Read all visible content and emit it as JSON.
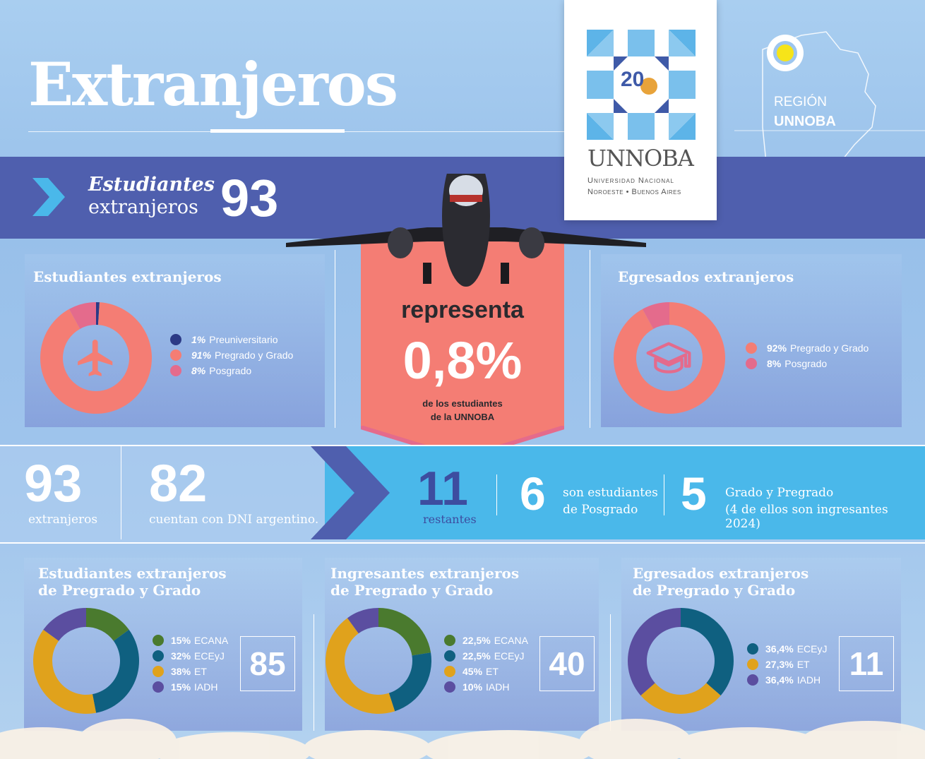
{
  "header": {
    "title": "Extranjeros"
  },
  "band": {
    "title": "Estudiantes",
    "subtitle": "extranjeros",
    "value": "93"
  },
  "logo": {
    "anniversary": "20",
    "name": "UNNOBA",
    "line1": "Universidad Nacional",
    "line2": "Noroeste • Buenos Aires"
  },
  "region": {
    "label": "REGIÓN",
    "name": "UNNOBA"
  },
  "center": {
    "word": "representa",
    "percent": "0,8%",
    "caption1": "de los estudiantes",
    "caption2": "de la UNNOBA"
  },
  "colors": {
    "band": "#4f5fae",
    "salmon": "#f47d74",
    "pink": "#e46b8c",
    "navy": "#2c3a86",
    "green": "#4a7a2e",
    "teal": "#0f6080",
    "orange": "#e0a21c",
    "purple": "#5b4ea0",
    "light_blue": "#4ab8ea"
  },
  "icons": {
    "students": "plane-icon",
    "graduates": "graduation-cap-icon"
  },
  "summary": {
    "total": {
      "value": "93",
      "label": "extranjeros"
    },
    "dni": {
      "value": "82",
      "label": "cuentan con DNI argentino."
    },
    "remaining": {
      "value": "11",
      "label": "restantes"
    },
    "posgrado": {
      "value": "6",
      "label1": "son estudiantes",
      "label2": "de Posgrado"
    },
    "grado": {
      "value": "5",
      "label1": "Grado y Pregrado",
      "label2": "(4 de ellos son ingresantes 2024)"
    }
  },
  "chart_data": [
    {
      "type": "pie",
      "title": "Estudiantes extranjeros",
      "series": [
        {
          "label": "Preuniversitario",
          "pct": "1%",
          "value": 1,
          "color": "#2c3a86"
        },
        {
          "label": "Pregrado y Grado",
          "pct": "91%",
          "value": 91,
          "color": "#f47d74"
        },
        {
          "label": "Posgrado",
          "pct": "8%",
          "value": 8,
          "color": "#e46b8c"
        }
      ]
    },
    {
      "type": "pie",
      "title": "Egresados extranjeros",
      "series": [
        {
          "label": "Pregrado y Grado",
          "pct": "92%",
          "value": 92,
          "color": "#f47d74"
        },
        {
          "label": "Posgrado",
          "pct": "8%",
          "value": 8,
          "color": "#e46b8c"
        }
      ]
    },
    {
      "type": "pie",
      "title_line1": "Estudiantes extranjeros",
      "title_line2": "de Pregrado y Grado",
      "total": "85",
      "series": [
        {
          "label": "ECANA",
          "pct": "15%",
          "value": 15,
          "color": "#4a7a2e"
        },
        {
          "label": "ECEyJ",
          "pct": "32%",
          "value": 32,
          "color": "#0f6080"
        },
        {
          "label": "ET",
          "pct": "38%",
          "value": 38,
          "color": "#e0a21c"
        },
        {
          "label": "IADH",
          "pct": "15%",
          "value": 15,
          "color": "#5b4ea0"
        }
      ]
    },
    {
      "type": "pie",
      "title_line1": "Ingresantes extranjeros",
      "title_line2": "de Pregrado y Grado",
      "total": "40",
      "series": [
        {
          "label": "ECANA",
          "pct": "22,5%",
          "value": 22.5,
          "color": "#4a7a2e"
        },
        {
          "label": "ECEyJ",
          "pct": "22,5%",
          "value": 22.5,
          "color": "#0f6080"
        },
        {
          "label": "ET",
          "pct": "45%",
          "value": 45,
          "color": "#e0a21c"
        },
        {
          "label": "IADH",
          "pct": "10%",
          "value": 10,
          "color": "#5b4ea0"
        }
      ]
    },
    {
      "type": "pie",
      "title_line1": "Egresados extranjeros",
      "title_line2": "de Pregrado y Grado",
      "total": "11",
      "series": [
        {
          "label": "ECEyJ",
          "pct": "36,4%",
          "value": 36.4,
          "color": "#0f6080"
        },
        {
          "label": "ET",
          "pct": "27,3%",
          "value": 27.3,
          "color": "#e0a21c"
        },
        {
          "label": "IADH",
          "pct": "36,4%",
          "value": 36.4,
          "color": "#5b4ea0"
        }
      ]
    }
  ]
}
